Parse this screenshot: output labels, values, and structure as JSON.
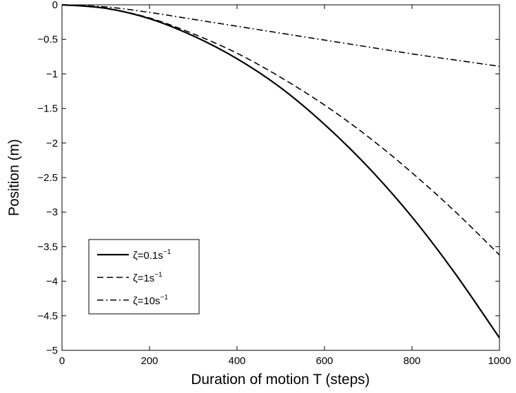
{
  "chart_data": {
    "type": "line",
    "title": "",
    "xlabel": "Duration of motion T (steps)",
    "ylabel": "Position (m)",
    "xlim": [
      0,
      1000
    ],
    "ylim": [
      -5,
      0
    ],
    "xticks": [
      0,
      200,
      400,
      600,
      800,
      1000
    ],
    "xtick_labels": [
      "0",
      "200",
      "400",
      "600",
      "800",
      "1000"
    ],
    "yticks": [
      0,
      -0.5,
      -1,
      -1.5,
      -2,
      -2.5,
      -3,
      -3.5,
      -4,
      -4.5,
      -5
    ],
    "ytick_labels": [
      "0",
      "−0.5",
      "−1",
      "−1.5",
      "−2",
      "−2.5",
      "−3",
      "−3.5",
      "−4",
      "−4.5",
      "−5"
    ],
    "grid": false,
    "legend_position": "lower-left",
    "series": [
      {
        "name": "ζ=0.1s⁻¹",
        "label_base": "ζ=0.1s",
        "label_sup": "−1",
        "style": "solid",
        "color": "#000000",
        "x": [
          0,
          100,
          200,
          300,
          400,
          500,
          600,
          700,
          800,
          900,
          1000
        ],
        "y": [
          0,
          -0.05,
          -0.2,
          -0.45,
          -0.78,
          -1.2,
          -1.73,
          -2.35,
          -3.07,
          -3.9,
          -4.82
        ]
      },
      {
        "name": "ζ=1s⁻¹",
        "label_base": "ζ=1s",
        "label_sup": "−1",
        "style": "dashed",
        "color": "#000000",
        "x": [
          0,
          100,
          200,
          300,
          400,
          500,
          600,
          700,
          800,
          900,
          1000
        ],
        "y": [
          0,
          -0.05,
          -0.19,
          -0.42,
          -0.7,
          -1.05,
          -1.45,
          -1.91,
          -2.43,
          -3.0,
          -3.62
        ]
      },
      {
        "name": "ζ=10s⁻¹",
        "label_base": "ζ=10s",
        "label_sup": "−1",
        "style": "dashdot",
        "color": "#000000",
        "x": [
          0,
          100,
          200,
          300,
          400,
          500,
          600,
          700,
          800,
          900,
          1000
        ],
        "y": [
          0,
          -0.03,
          -0.11,
          -0.21,
          -0.31,
          -0.41,
          -0.51,
          -0.61,
          -0.71,
          -0.8,
          -0.89
        ]
      }
    ]
  }
}
